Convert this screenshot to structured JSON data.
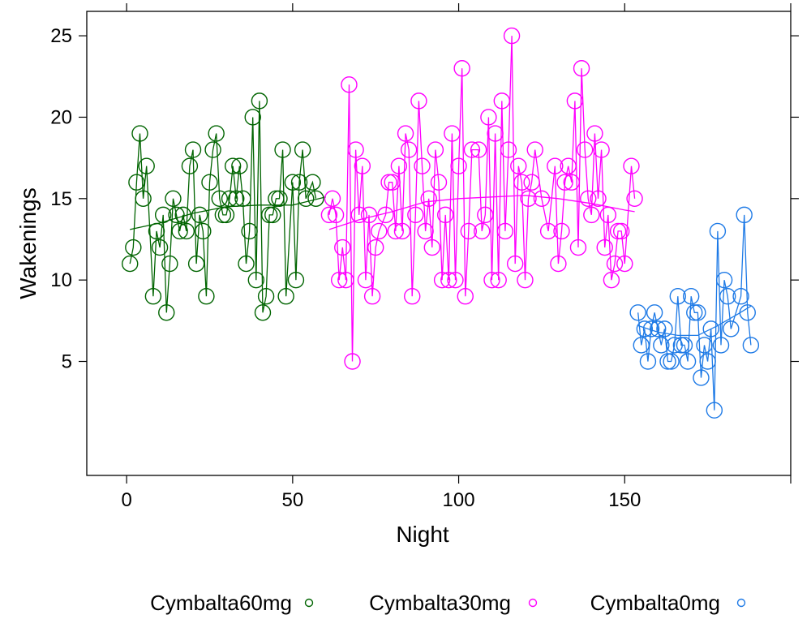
{
  "chart_data": {
    "type": "scatter",
    "title": "",
    "xlabel": "Night",
    "ylabel": "Wakenings",
    "xlim": [
      -12,
      200
    ],
    "ylim": [
      -2,
      26.5
    ],
    "xticks": [
      0,
      50,
      100,
      150
    ],
    "yticks": [
      5,
      10,
      15,
      20,
      25
    ],
    "grid": false,
    "legend_position": "bottom",
    "series": [
      {
        "name": "Cymbalta60mg",
        "color": "#006400",
        "x": [
          1,
          2,
          3,
          4,
          5,
          6,
          8,
          9,
          10,
          11,
          12,
          13,
          14,
          15,
          16,
          17,
          18,
          19,
          20,
          21,
          22,
          23,
          24,
          25,
          26,
          27,
          28,
          29,
          30,
          31,
          32,
          33,
          34,
          35,
          36,
          37,
          38,
          39,
          40,
          41,
          42,
          43,
          44,
          45,
          46,
          47,
          48,
          50,
          51,
          52,
          53,
          54,
          56,
          57
        ],
        "y": [
          11,
          12,
          16,
          19,
          15,
          17,
          9,
          13,
          12,
          14,
          8,
          11,
          15,
          14,
          13,
          14,
          13,
          17,
          18,
          11,
          14,
          13,
          9,
          16,
          18,
          19,
          15,
          14,
          14,
          15,
          17,
          15,
          17,
          15,
          11,
          13,
          20,
          10,
          21,
          8,
          9,
          14,
          14,
          15,
          15,
          18,
          9,
          16,
          10,
          16,
          18,
          15,
          16,
          15
        ],
        "smooth": [
          [
            1,
            13.1
          ],
          [
            10,
            13.5
          ],
          [
            20,
            14.1
          ],
          [
            30,
            14.5
          ],
          [
            40,
            14.6
          ],
          [
            50,
            14.6
          ],
          [
            60,
            15.1
          ]
        ]
      },
      {
        "name": "Cymbalta30mg",
        "color": "#ff00ff",
        "x": [
          61,
          62,
          63,
          64,
          65,
          66,
          67,
          68,
          69,
          70,
          71,
          72,
          73,
          74,
          75,
          76,
          78,
          79,
          80,
          81,
          82,
          83,
          84,
          85,
          86,
          87,
          88,
          89,
          90,
          91,
          92,
          93,
          94,
          95,
          96,
          97,
          98,
          99,
          100,
          101,
          102,
          103,
          104,
          106,
          107,
          108,
          109,
          110,
          111,
          112,
          113,
          114,
          115,
          116,
          117,
          118,
          119,
          120,
          121,
          122,
          123,
          125,
          127,
          129,
          130,
          131,
          132,
          133,
          134,
          135,
          136,
          137,
          138,
          139,
          140,
          141,
          142,
          143,
          144,
          145,
          146,
          147,
          148,
          149,
          150,
          152,
          153
        ],
        "y": [
          14,
          15,
          14,
          10,
          12,
          10,
          22,
          5,
          18,
          14,
          17,
          10,
          14,
          9,
          12,
          13,
          14,
          16,
          16,
          13,
          17,
          13,
          19,
          18,
          9,
          14,
          21,
          17,
          13,
          15,
          12,
          18,
          16,
          10,
          14,
          10,
          19,
          10,
          17,
          23,
          9,
          13,
          18,
          18,
          13,
          14,
          20,
          10,
          19,
          10,
          21,
          13,
          18,
          25,
          11,
          17,
          16,
          10,
          15,
          16,
          18,
          15,
          13,
          17,
          11,
          13,
          16,
          17,
          16,
          21,
          12,
          23,
          18,
          15,
          14,
          19,
          15,
          18,
          12,
          14,
          10,
          11,
          13,
          13,
          11,
          17,
          15
        ],
        "smooth": [
          [
            61,
            13.1
          ],
          [
            70,
            13.7
          ],
          [
            80,
            14.2
          ],
          [
            90,
            14.8
          ],
          [
            100,
            15.0
          ],
          [
            110,
            15.1
          ],
          [
            120,
            15.2
          ],
          [
            130,
            15.0
          ],
          [
            140,
            14.7
          ],
          [
            150,
            14.3
          ],
          [
            153,
            14.2
          ]
        ]
      },
      {
        "name": "Cymbalta0mg",
        "color": "#1e7ae6",
        "x": [
          154,
          155,
          156,
          157,
          158,
          159,
          160,
          161,
          162,
          163,
          164,
          165,
          166,
          167,
          168,
          169,
          170,
          171,
          172,
          173,
          174,
          175,
          176,
          177,
          178,
          179,
          180,
          181,
          182,
          185,
          186,
          187,
          188
        ],
        "y": [
          8,
          6,
          7,
          5,
          7,
          8,
          7,
          6,
          7,
          5,
          5,
          6,
          9,
          6,
          6,
          5,
          9,
          8,
          8,
          4,
          6,
          5,
          7,
          2,
          13,
          6,
          10,
          9,
          7,
          9,
          14,
          8,
          6
        ],
        "smooth": [
          [
            154,
            7.2
          ],
          [
            160,
            6.8
          ],
          [
            166,
            6.6
          ],
          [
            172,
            6.6
          ],
          [
            178,
            7.2
          ],
          [
            184,
            7.9
          ],
          [
            188,
            8.4
          ]
        ]
      }
    ]
  }
}
